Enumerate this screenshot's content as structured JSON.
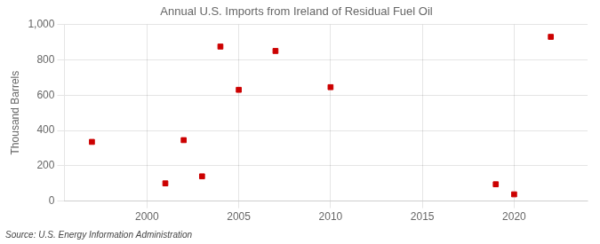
{
  "chart_data": {
    "type": "scatter",
    "title": "Annual U.S. Imports from Ireland of Residual Fuel Oil",
    "y_label": "Thousand Barrels",
    "annotations": [
      "Source: U.S. Energy Information Administration"
    ],
    "x": [
      1997,
      2001,
      2002,
      2003,
      2004,
      2005,
      2007,
      2010,
      2019,
      2020,
      2022
    ],
    "values": [
      335,
      100,
      345,
      140,
      875,
      630,
      850,
      645,
      95,
      38,
      930
    ],
    "color": "#cc0000",
    "marker": "square",
    "xlim": [
      1995.5,
      2024
    ],
    "xticks": [
      2000,
      2005,
      2010,
      2015,
      2020
    ],
    "ylim": [
      0,
      1000
    ],
    "yticks": [
      0,
      200,
      400,
      600,
      800,
      {
        "value": 1000,
        "label": "1,000"
      }
    ],
    "grid": true
  }
}
